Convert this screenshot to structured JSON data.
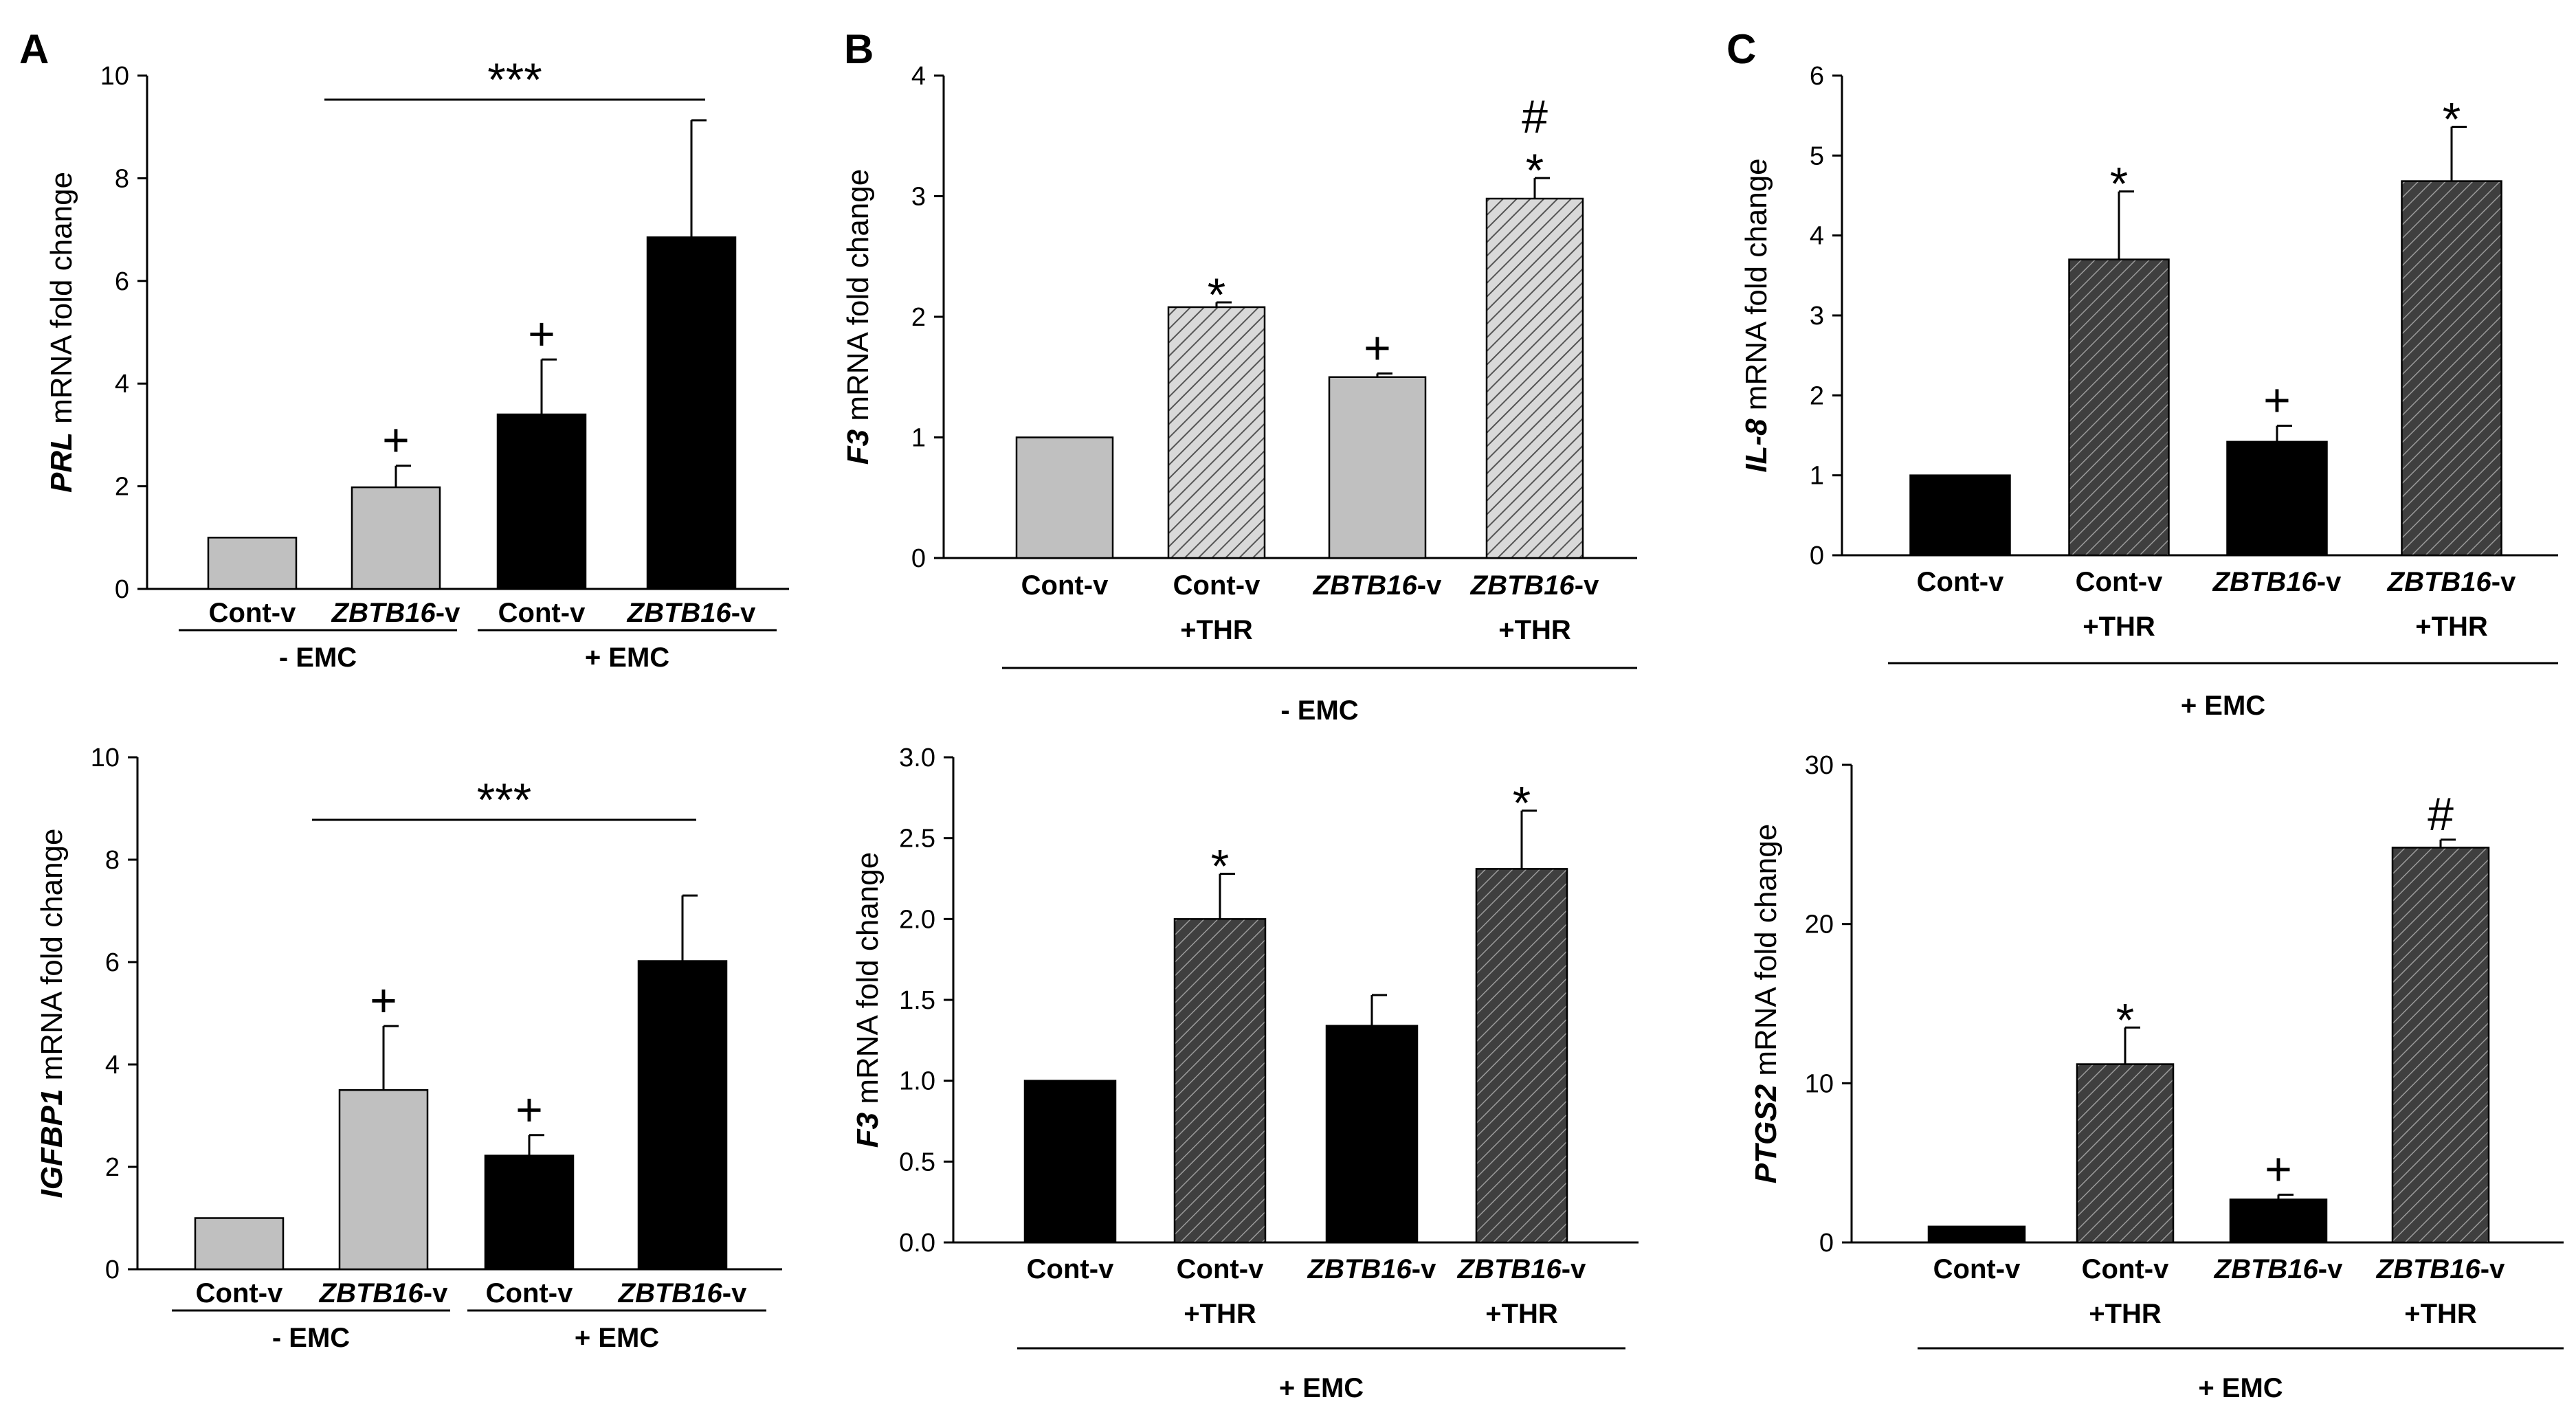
{
  "figure_labels": [
    "A",
    "B",
    "C"
  ],
  "chart_data": [
    {
      "id": "A1",
      "panel": "A",
      "type": "bar",
      "ylabel_gene": "PRL",
      "ylabel_rest": " mRNA fold change",
      "ylim": [
        0,
        10
      ],
      "yticks": [
        "0",
        "2",
        "4",
        "6",
        "8",
        "10"
      ],
      "categories": [
        {
          "gene": "",
          "suffix": "Cont-v"
        },
        {
          "gene": "ZBTB16",
          "suffix": "-v"
        },
        {
          "gene": "",
          "suffix": "Cont-v"
        },
        {
          "gene": "ZBTB16",
          "suffix": "-v"
        }
      ],
      "values": [
        1.0,
        1.98,
        3.4,
        6.85
      ],
      "errors": [
        0,
        0.42,
        1.07,
        2.28
      ],
      "fills": [
        "gray",
        "gray",
        "black",
        "black"
      ],
      "annotations": [
        "",
        "+",
        "+",
        ""
      ],
      "groups": [
        "- EMC",
        "+ EMC"
      ],
      "bracket": {
        "label": "***",
        "from": 1,
        "to": 3
      }
    },
    {
      "id": "A2",
      "panel": "A",
      "type": "bar",
      "ylabel_gene": "IGFBP1",
      "ylabel_rest": " mRNA fold change",
      "ylim": [
        0,
        10
      ],
      "yticks": [
        "0",
        "2",
        "4",
        "6",
        "8",
        "10"
      ],
      "categories": [
        {
          "gene": "",
          "suffix": "Cont-v"
        },
        {
          "gene": "ZBTB16",
          "suffix": "-v"
        },
        {
          "gene": "",
          "suffix": "Cont-v"
        },
        {
          "gene": "ZBTB16",
          "suffix": "-v"
        }
      ],
      "values": [
        1.0,
        3.5,
        2.22,
        6.02
      ],
      "errors": [
        0,
        1.25,
        0.4,
        1.28
      ],
      "fills": [
        "gray",
        "gray",
        "black",
        "black"
      ],
      "annotations": [
        "",
        "+",
        "+",
        ""
      ],
      "groups": [
        "- EMC",
        "+ EMC"
      ],
      "bracket": {
        "label": "***",
        "from": 1,
        "to": 3
      }
    },
    {
      "id": "B1",
      "panel": "B",
      "type": "bar",
      "ylabel_gene": "F3",
      "ylabel_rest": " mRNA fold change",
      "ylim": [
        0,
        4
      ],
      "yticks": [
        "0",
        "1",
        "2",
        "3",
        "4"
      ],
      "categories": [
        {
          "gene": "",
          "suffix": "Cont-v",
          "line2": ""
        },
        {
          "gene": "",
          "suffix": "Cont-v",
          "line2": "+THR"
        },
        {
          "gene": "ZBTB16",
          "suffix": "-v",
          "line2": ""
        },
        {
          "gene": "ZBTB16",
          "suffix": "-v",
          "line2": "+THR"
        }
      ],
      "values": [
        1.0,
        2.08,
        1.5,
        2.98
      ],
      "errors": [
        0,
        0.04,
        0.03,
        0.17
      ],
      "fills": [
        "gray",
        "gray-hatch",
        "gray",
        "gray-hatch"
      ],
      "annotations": [
        "",
        "*",
        "+",
        "#\n*"
      ],
      "span_label": "- EMC"
    },
    {
      "id": "B2",
      "panel": "B",
      "type": "bar",
      "ylabel_gene": "F3",
      "ylabel_rest": " mRNA fold change",
      "ylim": [
        0,
        3
      ],
      "yticks": [
        "0.0",
        "0.5",
        "1.0",
        "1.5",
        "2.0",
        "2.5",
        "3.0"
      ],
      "categories": [
        {
          "gene": "",
          "suffix": "Cont-v",
          "line2": ""
        },
        {
          "gene": "",
          "suffix": "Cont-v",
          "line2": "+THR"
        },
        {
          "gene": "ZBTB16",
          "suffix": "-v",
          "line2": ""
        },
        {
          "gene": "ZBTB16",
          "suffix": "-v",
          "line2": "+THR"
        }
      ],
      "values": [
        1.0,
        2.0,
        1.34,
        2.31
      ],
      "errors": [
        0,
        0.28,
        0.19,
        0.36
      ],
      "fills": [
        "black",
        "dark-hatch",
        "black",
        "dark-hatch"
      ],
      "annotations": [
        "",
        "*",
        "",
        "*"
      ],
      "span_label": "+ EMC"
    },
    {
      "id": "C1",
      "panel": "C",
      "type": "bar",
      "ylabel_gene": "IL-8",
      "ylabel_rest": " mRNA fold change",
      "ylim": [
        0,
        6
      ],
      "yticks": [
        "0",
        "1",
        "2",
        "3",
        "4",
        "5",
        "6"
      ],
      "categories": [
        {
          "gene": "",
          "suffix": "Cont-v",
          "line2": ""
        },
        {
          "gene": "",
          "suffix": "Cont-v",
          "line2": "+THR"
        },
        {
          "gene": "ZBTB16",
          "suffix": "-v",
          "line2": ""
        },
        {
          "gene": "ZBTB16",
          "suffix": "-v",
          "line2": "+THR"
        }
      ],
      "values": [
        1.0,
        3.7,
        1.42,
        4.68
      ],
      "errors": [
        0,
        0.85,
        0.2,
        0.68
      ],
      "fills": [
        "black",
        "dark-hatch",
        "black",
        "dark-hatch"
      ],
      "annotations": [
        "",
        "*",
        "+",
        "*"
      ],
      "span_label": "+ EMC"
    },
    {
      "id": "C2",
      "panel": "C",
      "type": "bar",
      "ylabel_gene": "PTGS2",
      "ylabel_rest": " mRNA fold change",
      "ylim": [
        0,
        30
      ],
      "yticks": [
        "0",
        "10",
        "20",
        "30"
      ],
      "categories": [
        {
          "gene": "",
          "suffix": "Cont-v",
          "line2": ""
        },
        {
          "gene": "",
          "suffix": "Cont-v",
          "line2": "+THR"
        },
        {
          "gene": "ZBTB16",
          "suffix": "-v",
          "line2": ""
        },
        {
          "gene": "ZBTB16",
          "suffix": "-v",
          "line2": "+THR"
        }
      ],
      "values": [
        1.0,
        11.2,
        2.7,
        24.8
      ],
      "errors": [
        0,
        2.3,
        0.3,
        0.5
      ],
      "fills": [
        "black",
        "dark-hatch",
        "black",
        "dark-hatch"
      ],
      "annotations": [
        "",
        "*",
        "+",
        "#"
      ],
      "span_label": "+ EMC"
    }
  ]
}
